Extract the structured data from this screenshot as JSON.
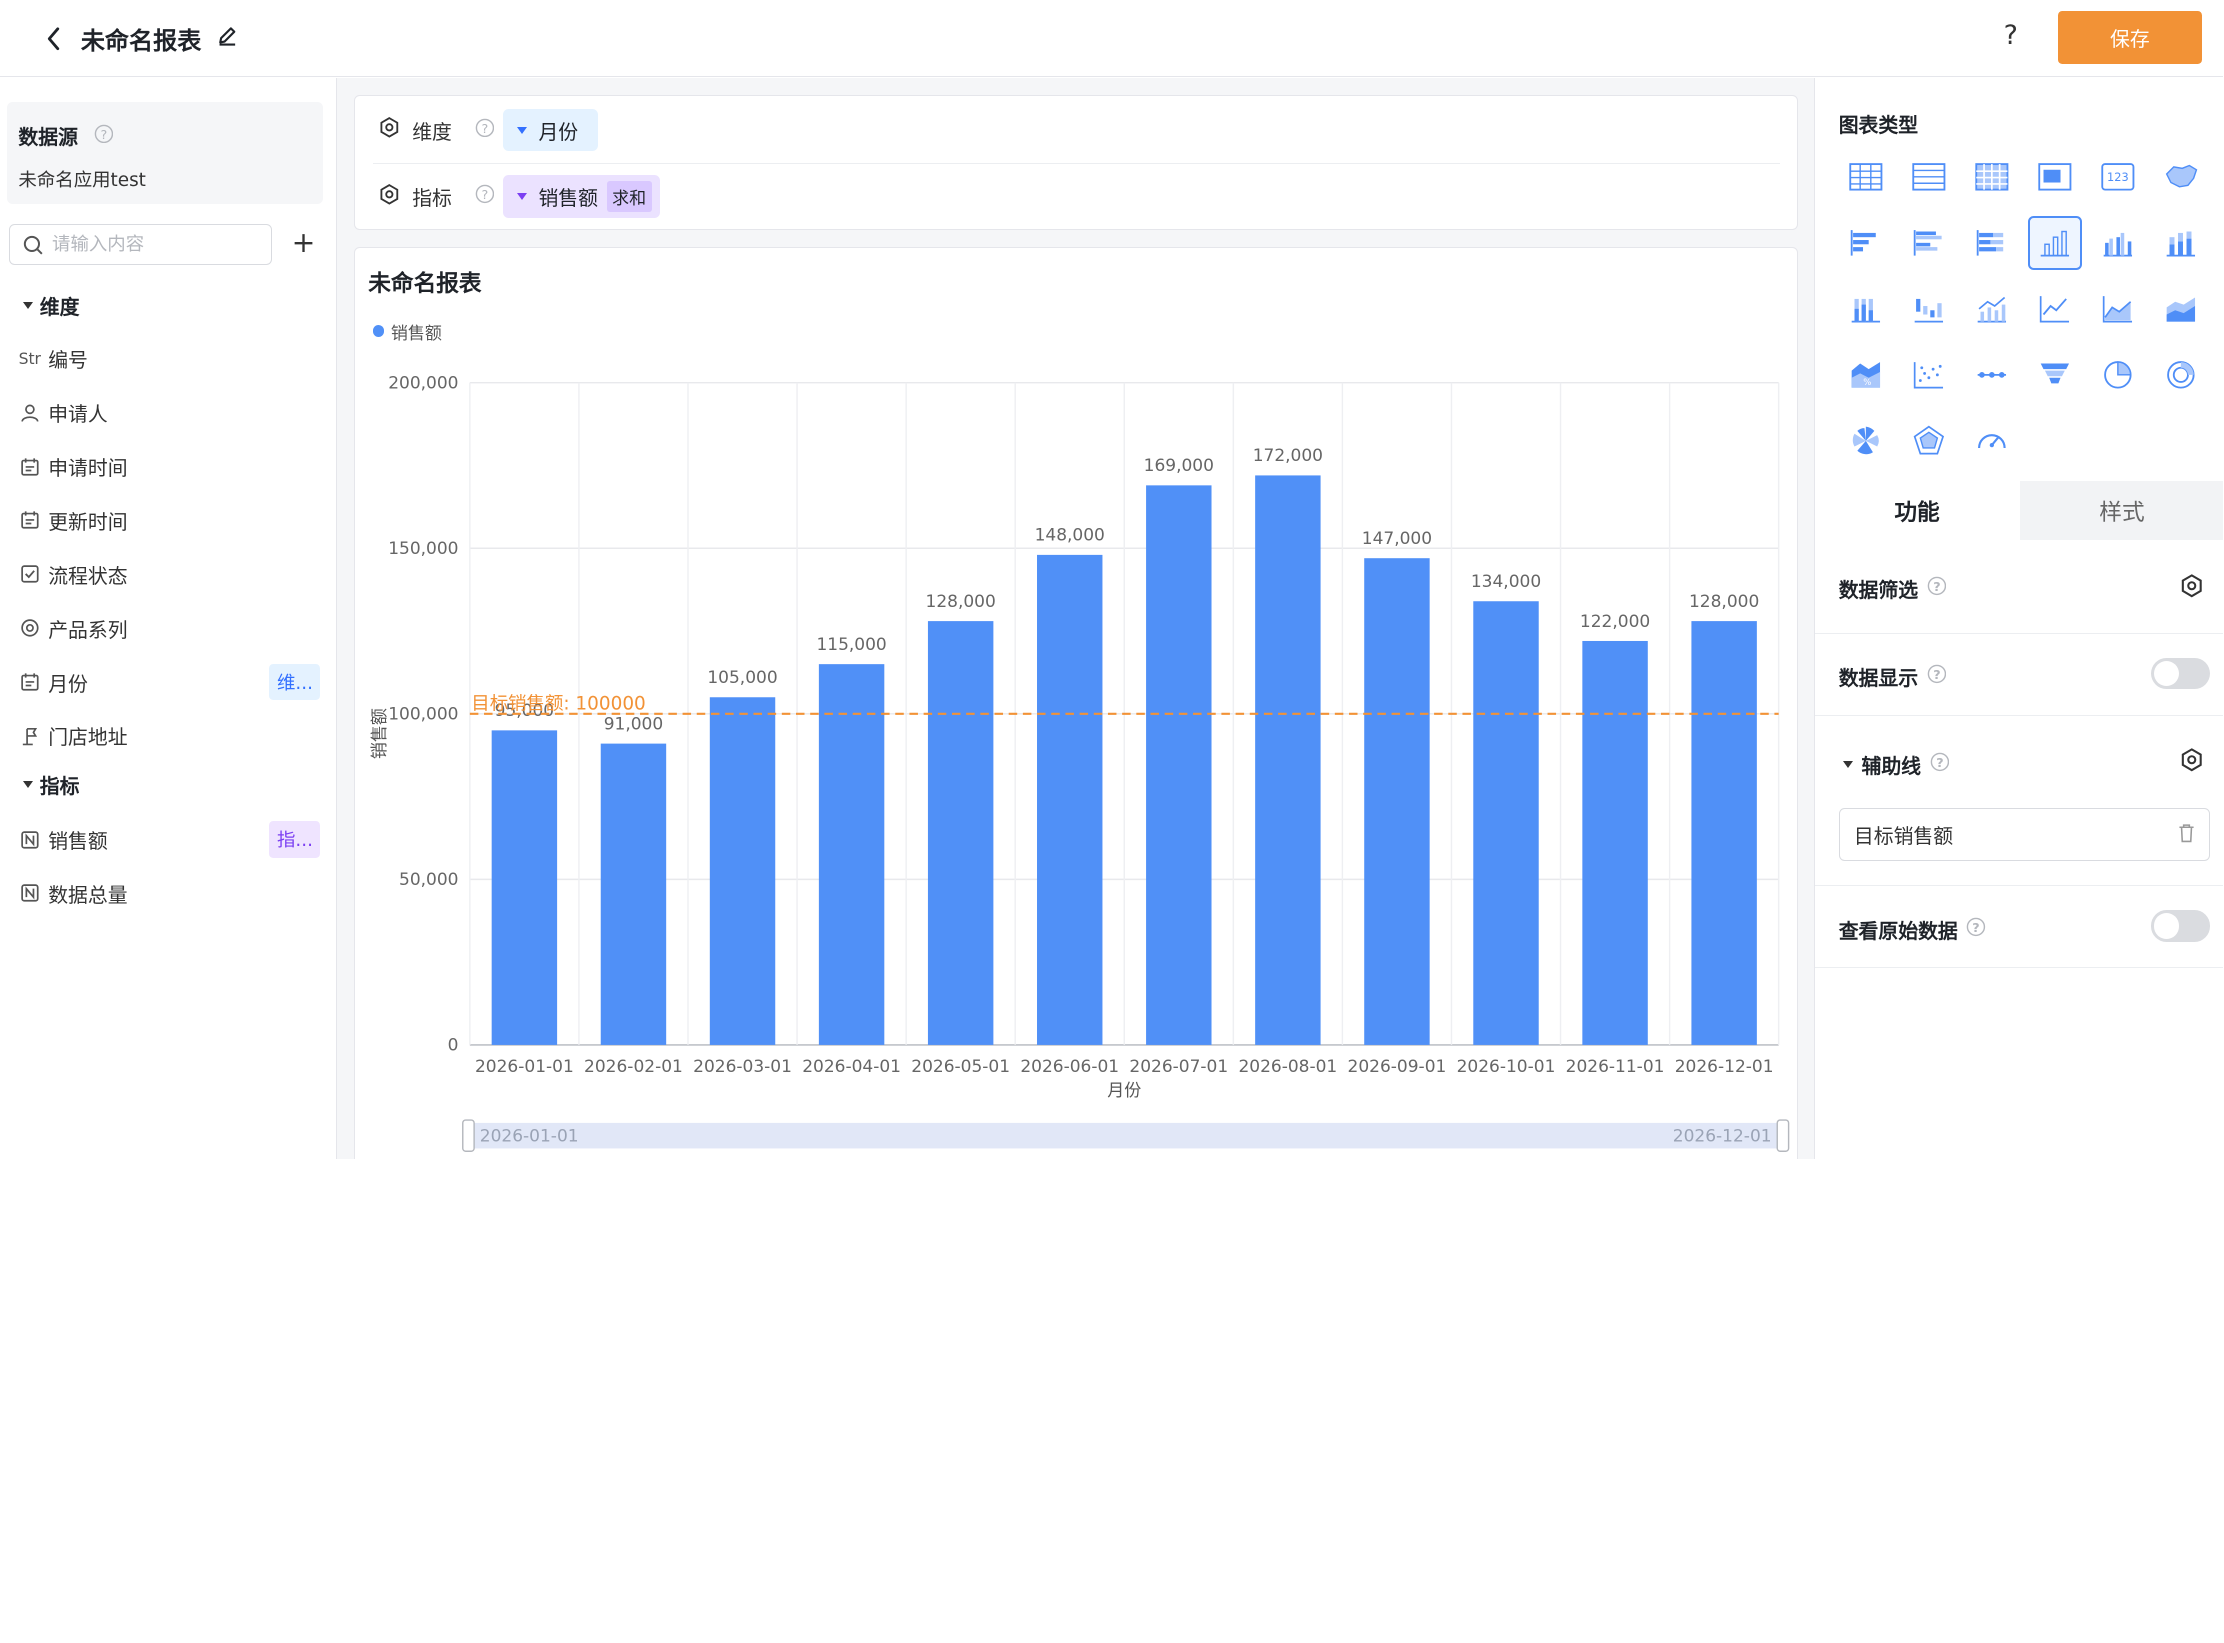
{
  "header": {
    "title": "未命名报表",
    "help": "?",
    "save_label": "保存"
  },
  "left": {
    "datasource_label": "数据源",
    "datasource_name": "未命名应用test",
    "search_placeholder": "请输入内容",
    "dim_group": "维度",
    "metric_group": "指标",
    "dimensions": [
      {
        "label": "编号",
        "icon": "Str"
      },
      {
        "label": "申请人",
        "icon": "user-icon"
      },
      {
        "label": "申请时间",
        "icon": "calendar-icon"
      },
      {
        "label": "更新时间",
        "icon": "calendar-icon"
      },
      {
        "label": "流程状态",
        "icon": "checkbox-icon"
      },
      {
        "label": "产品系列",
        "icon": "radio-icon"
      },
      {
        "label": "月份",
        "icon": "calendar-icon",
        "tag": "维..."
      },
      {
        "label": "门店地址",
        "icon": "location-icon"
      }
    ],
    "metrics": [
      {
        "label": "销售额",
        "icon": "number-icon",
        "tag": "指..."
      },
      {
        "label": "数据总量",
        "icon": "number-icon"
      }
    ]
  },
  "config": {
    "dim_label": "维度",
    "metric_label": "指标",
    "dim_value": "月份",
    "metric_value": "销售额",
    "metric_agg": "求和"
  },
  "chart_data": {
    "type": "bar",
    "title": "未命名报表",
    "xlabel": "月份",
    "ylabel": "销售额",
    "categories": [
      "2026-01-01",
      "2026-02-01",
      "2026-03-01",
      "2026-04-01",
      "2026-05-01",
      "2026-06-01",
      "2026-07-01",
      "2026-08-01",
      "2026-09-01",
      "2026-10-01",
      "2026-11-01",
      "2026-12-01"
    ],
    "series": [
      {
        "name": "销售额",
        "values": [
          95000,
          91000,
          105000,
          115000,
          128000,
          148000,
          169000,
          172000,
          147000,
          134000,
          122000,
          128000
        ]
      }
    ],
    "value_labels": [
      "95,000",
      "91,000",
      "105,000",
      "115,000",
      "128,000",
      "148,000",
      "169,000",
      "172,000",
      "147,000",
      "134,000",
      "122,000",
      "128,000"
    ],
    "ylim": [
      0,
      200000
    ],
    "yticks": [
      0,
      50000,
      100000,
      150000,
      200000
    ],
    "ytick_labels": [
      "0",
      "50,000",
      "100,000",
      "150,000",
      "200,000"
    ],
    "reference_line": {
      "value": 100000,
      "label": "目标销售额: 100000",
      "color": "#f29236"
    },
    "bar_color": "#5090f7",
    "grid": true,
    "legend": "top-left",
    "zoom_range": [
      "2026-01-01",
      "2026-12-01"
    ]
  },
  "right": {
    "chart_type_label": "图表类型",
    "tab_function": "功能",
    "tab_style": "样式",
    "data_filter": "数据筛选",
    "data_display": "数据显示",
    "ref_line": "辅助线",
    "ref_line_item": "目标销售额",
    "view_raw": "查看原始数据"
  }
}
